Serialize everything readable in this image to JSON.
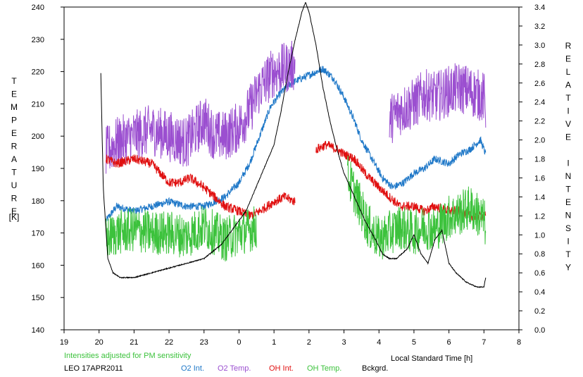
{
  "chart_data": {
    "type": "line",
    "left_axis": {
      "label": "TEMPERATURE",
      "unit": "[K]",
      "range": [
        140,
        240
      ],
      "ticks": [
        "140",
        "150",
        "160",
        "170",
        "180",
        "190",
        "200",
        "210",
        "220",
        "230",
        "240"
      ]
    },
    "right_axis": {
      "label": "RELATIVE INTENSITY",
      "range": [
        0.0,
        3.4
      ],
      "ticks": [
        "0.0",
        "0.2",
        "0.4",
        "0.6",
        "0.8",
        "1.0",
        "1.2",
        "1.4",
        "1.6",
        "1.8",
        "2.0",
        "2.2",
        "2.4",
        "2.6",
        "2.8",
        "3.0",
        "3.2",
        "3.4"
      ]
    },
    "x_axis": {
      "label": "Local Standard Time [h]",
      "range": [
        19,
        32
      ],
      "ticks": [
        "19",
        "20",
        "21",
        "22",
        "23",
        "0",
        "1",
        "2",
        "3",
        "4",
        "5",
        "6",
        "7",
        "8"
      ]
    },
    "note": "Intensities adjusted for PM sensitivity",
    "station": "LEO 17APR2011",
    "legend": [
      {
        "name": "O2 Int.",
        "color": "#1f78c8"
      },
      {
        "name": "O2 Temp.",
        "color": "#9b4fd0"
      },
      {
        "name": "OH Int.",
        "color": "#e01010"
      },
      {
        "name": "OH Temp.",
        "color": "#3cc23c"
      },
      {
        "name": "Bckgrd.",
        "color": "#000000"
      }
    ],
    "series": [
      {
        "name": "O2 Int.",
        "axis": "right",
        "color": "#1f78c8",
        "noise": 0.04,
        "x": [
          20.2,
          20.5,
          21,
          21.5,
          22,
          22.5,
          23,
          23.3,
          23.6,
          24,
          24.3,
          24.6,
          24.9,
          25.2,
          25.5,
          25.8,
          26.1,
          26.4,
          26.7,
          27,
          27.3,
          27.5,
          27.8,
          28.1,
          28.4,
          28.7,
          29,
          29.3,
          29.6,
          30,
          30.3,
          30.6,
          30.9,
          31.05
        ],
        "y": [
          1.15,
          1.3,
          1.25,
          1.3,
          1.35,
          1.3,
          1.3,
          1.35,
          1.4,
          1.55,
          1.75,
          2.05,
          2.35,
          2.5,
          2.6,
          2.65,
          2.7,
          2.75,
          2.65,
          2.45,
          2.2,
          2.0,
          1.8,
          1.6,
          1.5,
          1.55,
          1.65,
          1.7,
          1.8,
          1.75,
          1.85,
          1.9,
          2.0,
          1.85
        ]
      },
      {
        "name": "O2 Temp.",
        "axis": "left",
        "color": "#9b4fd0",
        "noise": 8,
        "segments": [
          {
            "x": [
              20.2,
              20.5,
              21,
              21.5,
              22,
              22.5,
              23,
              23.3,
              23.6,
              24,
              24.3,
              24.6,
              25,
              25.3,
              25.6
            ],
            "y": [
              195,
              198,
              200,
              202,
              200,
              198,
              205,
              200,
              200,
              203,
              208,
              215,
              220,
              221,
              222
            ]
          },
          {
            "x": [
              28.3,
              28.6,
              29,
              29.3,
              29.6,
              30,
              30.3,
              30.6,
              31,
              31.05
            ],
            "y": [
              205,
              208,
              210,
              213,
              212,
              214,
              215,
              214,
              212,
              208
            ]
          }
        ]
      },
      {
        "name": "OH Int.",
        "axis": "right",
        "color": "#e01010",
        "noise": 0.05,
        "segments": [
          {
            "x": [
              20.2,
              20.5,
              21,
              21.5,
              22,
              22.3,
              22.6,
              23,
              23.3,
              23.6,
              24,
              24.3,
              24.6,
              25,
              25.3,
              25.6
            ],
            "y": [
              1.8,
              1.75,
              1.8,
              1.75,
              1.55,
              1.55,
              1.6,
              1.5,
              1.4,
              1.3,
              1.25,
              1.2,
              1.25,
              1.35,
              1.4,
              1.35
            ]
          },
          {
            "x": [
              26.2,
              26.5,
              26.8,
              27,
              27.3,
              27.6,
              28,
              28.3,
              28.6,
              29,
              29.3,
              29.6,
              30,
              30.3,
              30.6,
              31,
              31.05
            ],
            "y": [
              1.9,
              1.95,
              1.9,
              1.85,
              1.8,
              1.65,
              1.5,
              1.4,
              1.3,
              1.3,
              1.25,
              1.3,
              1.25,
              1.25,
              1.2,
              1.2,
              1.2
            ]
          }
        ]
      },
      {
        "name": "OH Temp.",
        "axis": "left",
        "color": "#3cc23c",
        "noise": 7,
        "segments": [
          {
            "x": [
              20.2,
              20.5,
              21,
              21.5,
              22,
              22.5,
              23,
              23.3,
              23.6,
              24,
              24.3,
              24.5
            ],
            "y": [
              168,
              170,
              171,
              170,
              170,
              169,
              172,
              170,
              168,
              170,
              171,
              172
            ]
          },
          {
            "x": [
              27.1,
              27.4,
              27.7,
              28,
              28.3,
              28.6,
              29,
              29.3,
              29.6,
              30,
              30.3,
              30.6,
              31,
              31.05
            ],
            "y": [
              188,
              180,
              172,
              168,
              170,
              172,
              170,
              172,
              171,
              175,
              176,
              178,
              174,
              172
            ]
          }
        ]
      },
      {
        "name": "Bckgrd.",
        "axis": "right",
        "color": "#000000",
        "noise": 0.005,
        "x": [
          20.05,
          20.12,
          20.25,
          20.4,
          20.6,
          21,
          21.5,
          22,
          22.5,
          23,
          23.5,
          23.8,
          24.2,
          24.6,
          25,
          25.2,
          25.4,
          25.6,
          25.8,
          25.9,
          26,
          26.2,
          26.4,
          26.6,
          26.8,
          27,
          27.3,
          27.6,
          27.9,
          28.1,
          28.3,
          28.5,
          28.8,
          29,
          29.2,
          29.4,
          29.6,
          29.8,
          30,
          30.2,
          30.5,
          30.8,
          31,
          31.05
        ],
        "y": [
          2.7,
          1.5,
          0.75,
          0.6,
          0.55,
          0.55,
          0.6,
          0.65,
          0.7,
          0.75,
          0.9,
          1.05,
          1.25,
          1.6,
          1.95,
          2.3,
          2.7,
          3.05,
          3.35,
          3.45,
          3.35,
          3.0,
          2.55,
          2.2,
          1.9,
          1.65,
          1.4,
          1.15,
          0.95,
          0.8,
          0.75,
          0.75,
          0.85,
          1.0,
          0.8,
          0.7,
          0.95,
          1.05,
          0.7,
          0.6,
          0.5,
          0.45,
          0.45,
          0.55
        ]
      }
    ]
  }
}
